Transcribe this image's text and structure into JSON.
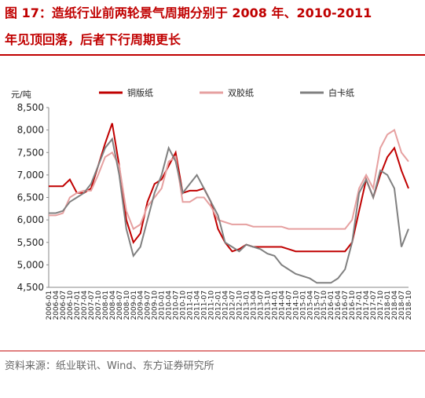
{
  "chart_data": {
    "type": "line",
    "title": [
      "图 17：造纸行业前两轮景气周期分别于 2008 年、2010-2011",
      "年见顶回落，后者下行周期更长"
    ],
    "y_label": "元/吨",
    "source": "资料来源：纸业联讯、Wind、东方证券研究所",
    "categories": [
      "2006-01",
      "2006-04",
      "2006-07",
      "2006-10",
      "2007-01",
      "2007-04",
      "2007-07",
      "2007-10",
      "2008-01",
      "2008-04",
      "2008-07",
      "2008-10",
      "2009-01",
      "2009-04",
      "2009-07",
      "2009-10",
      "2010-01",
      "2010-04",
      "2010-07",
      "2010-10",
      "2011-01",
      "2011-04",
      "2011-07",
      "2011-10",
      "2012-01",
      "2012-04",
      "2012-07",
      "2012-10",
      "2013-01",
      "2013-04",
      "2013-07",
      "2013-10",
      "2014-01",
      "2014-04",
      "2014-07",
      "2014-10",
      "2015-01",
      "2015-04",
      "2015-07",
      "2015-10",
      "2016-01",
      "2016-04",
      "2016-07",
      "2016-10",
      "2017-01",
      "2017-04",
      "2017-07",
      "2017-10",
      "2018-01",
      "2018-04",
      "2018-07",
      "2018-10"
    ],
    "series": [
      {
        "name": "铜版纸",
        "color": "#c00000",
        "values": [
          6750,
          6750,
          6750,
          6900,
          6600,
          6600,
          6700,
          7200,
          7700,
          8150,
          7200,
          6000,
          5500,
          5700,
          6400,
          6800,
          6900,
          7200,
          7500,
          6600,
          6650,
          6650,
          6700,
          6400,
          5800,
          5500,
          5300,
          5350,
          5450,
          5400,
          5400,
          5400,
          5400,
          5400,
          5350,
          5300,
          5300,
          5300,
          5300,
          5300,
          5300,
          5300,
          5300,
          5500,
          6200,
          6900,
          6500,
          7000,
          7400,
          7600,
          7100,
          6700
        ]
      },
      {
        "name": "双胶纸",
        "color": "#e6a0a0",
        "values": [
          6100,
          6100,
          6150,
          6500,
          6600,
          6650,
          6650,
          7000,
          7400,
          7500,
          7200,
          6200,
          5800,
          5900,
          6300,
          6500,
          6700,
          7300,
          7400,
          6400,
          6400,
          6500,
          6500,
          6300,
          6000,
          5950,
          5900,
          5900,
          5900,
          5850,
          5850,
          5850,
          5850,
          5850,
          5800,
          5800,
          5800,
          5800,
          5800,
          5800,
          5800,
          5800,
          5800,
          6000,
          6700,
          7000,
          6700,
          7600,
          7900,
          8000,
          7500,
          7300
        ]
      },
      {
        "name": "白卡纸",
        "color": "#808080",
        "values": [
          6150,
          6150,
          6200,
          6400,
          6500,
          6600,
          6800,
          7200,
          7600,
          7800,
          7000,
          5800,
          5200,
          5400,
          6000,
          6600,
          7000,
          7600,
          7300,
          6600,
          6800,
          7000,
          6700,
          6400,
          6100,
          5500,
          5400,
          5300,
          5450,
          5400,
          5350,
          5250,
          5200,
          5000,
          4900,
          4800,
          4750,
          4700,
          4600,
          4600,
          4600,
          4700,
          4900,
          5500,
          6600,
          6900,
          6500,
          7100,
          7000,
          6700,
          5400,
          5800
        ]
      }
    ],
    "ylim": [
      4500,
      8500
    ],
    "yticks": [
      {
        "value": 4500,
        "label": "4,500"
      },
      {
        "value": 5000,
        "label": "5,000"
      },
      {
        "value": 5500,
        "label": "5,500"
      },
      {
        "value": 6000,
        "label": "6,000"
      },
      {
        "value": 6500,
        "label": "6,500"
      },
      {
        "value": 7000,
        "label": "7,000"
      },
      {
        "value": 7500,
        "label": "7,500"
      },
      {
        "value": 8000,
        "label": "8,000"
      },
      {
        "value": 8500,
        "label": "8,500"
      }
    ],
    "legend": "top"
  }
}
